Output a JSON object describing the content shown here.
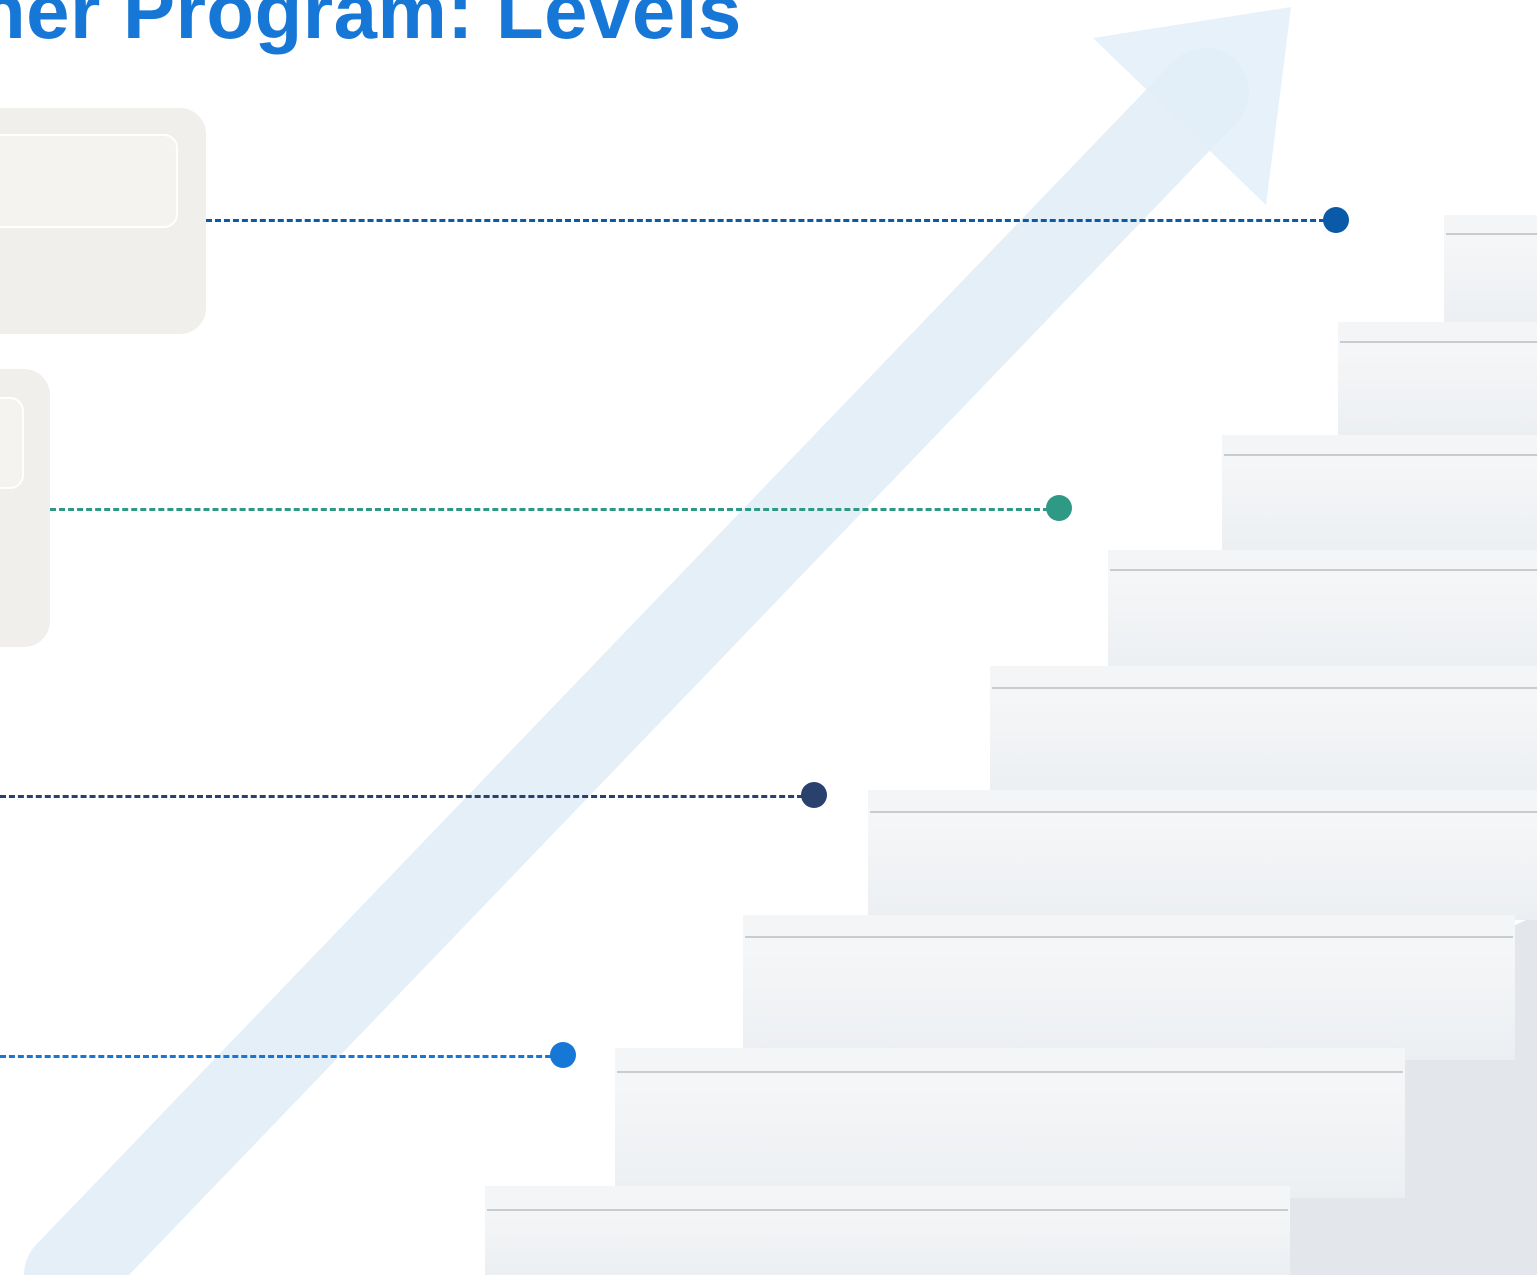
{
  "slide": {
    "title": "ner Program: Levels"
  },
  "colors": {
    "title": "#1677d6",
    "arrow": "#e2eef8",
    "card_bg": "#f0efeb",
    "level_1": "#0a5aa8",
    "level_2": "#2e9a86",
    "level_3": "#2a416d",
    "level_4": "#1677d6"
  },
  "levels": [
    {
      "color_key": "level_1"
    },
    {
      "color_key": "level_2"
    },
    {
      "color_key": "level_3"
    },
    {
      "color_key": "level_4"
    }
  ]
}
